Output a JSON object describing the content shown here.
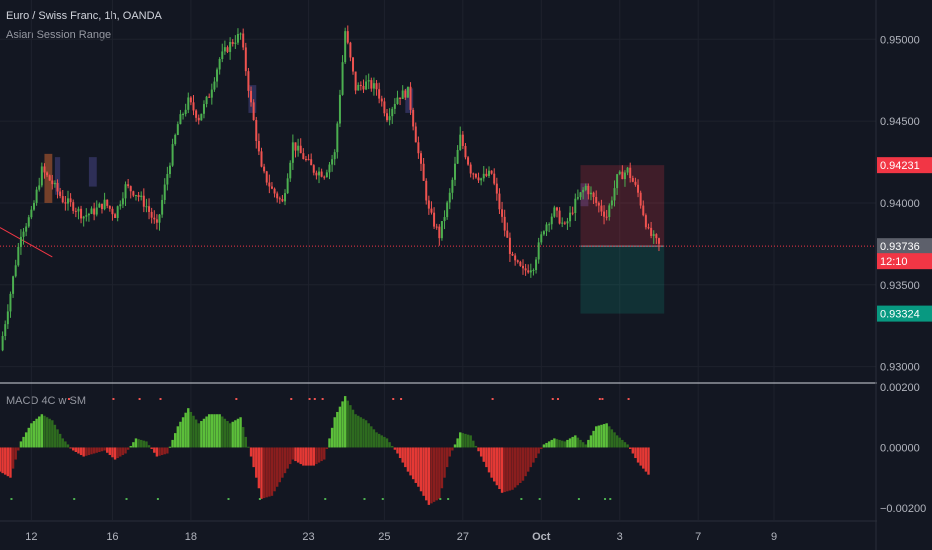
{
  "header": {
    "symbol_line": "Euro / Swiss Franc, 1h, OANDA",
    "indicator_1": "Asian Session Range",
    "indicator_2": "MACD 4C w SM"
  },
  "colors": {
    "background": "#131722",
    "grid": "#1e222d",
    "up": "#26a69a",
    "up_bright": "#4caf50",
    "down": "#ef5350",
    "session_box": "#3a3a6e",
    "session_box_orange": "#a0522d",
    "macd_up_strong": "#5cbf3a",
    "macd_up_weak": "#2e6b1f",
    "macd_down_strong": "#e53935",
    "macd_down_weak": "#8b1e1e",
    "price_label_red": "#f23645",
    "price_label_gray": "#5d606b",
    "price_label_teal": "#089981"
  },
  "chart_data": [
    {
      "type": "candlestick",
      "title": "Euro / Swiss Franc, 1h, OANDA",
      "x_tick_labels": [
        "12",
        "16",
        "18",
        "23",
        "25",
        "27",
        "Oct",
        "3",
        "7",
        "9"
      ],
      "y_tick_labels": [
        "0.95000",
        "0.94500",
        "0.94000",
        "0.93500",
        "0.93000"
      ],
      "ylim": [
        0.929,
        0.9524
      ],
      "price_path": [
        {
          "x": 0,
          "y": 0.931
        },
        {
          "x": 0.4,
          "y": 0.9345
        },
        {
          "x": 0.8,
          "y": 0.9382
        },
        {
          "x": 1.2,
          "y": 0.9393
        },
        {
          "x": 1.6,
          "y": 0.942
        },
        {
          "x": 2.0,
          "y": 0.9412
        },
        {
          "x": 2.4,
          "y": 0.9402
        },
        {
          "x": 2.8,
          "y": 0.9398
        },
        {
          "x": 3.2,
          "y": 0.9392
        },
        {
          "x": 3.6,
          "y": 0.9395
        },
        {
          "x": 4.0,
          "y": 0.94
        },
        {
          "x": 4.4,
          "y": 0.9393
        },
        {
          "x": 4.8,
          "y": 0.941
        },
        {
          "x": 5.2,
          "y": 0.9406
        },
        {
          "x": 5.6,
          "y": 0.9398
        },
        {
          "x": 6.0,
          "y": 0.9385
        },
        {
          "x": 6.4,
          "y": 0.9418
        },
        {
          "x": 6.8,
          "y": 0.9448
        },
        {
          "x": 7.2,
          "y": 0.9462
        },
        {
          "x": 7.6,
          "y": 0.9452
        },
        {
          "x": 8.0,
          "y": 0.9466
        },
        {
          "x": 8.4,
          "y": 0.9488
        },
        {
          "x": 8.8,
          "y": 0.9497
        },
        {
          "x": 9.2,
          "y": 0.9503
        },
        {
          "x": 9.6,
          "y": 0.946
        },
        {
          "x": 10.0,
          "y": 0.942
        },
        {
          "x": 10.4,
          "y": 0.9408
        },
        {
          "x": 10.8,
          "y": 0.94
        },
        {
          "x": 11.2,
          "y": 0.9436
        },
        {
          "x": 11.6,
          "y": 0.9428
        },
        {
          "x": 12.0,
          "y": 0.942
        },
        {
          "x": 12.4,
          "y": 0.9418
        },
        {
          "x": 12.8,
          "y": 0.943
        },
        {
          "x": 13.2,
          "y": 0.9505
        },
        {
          "x": 13.6,
          "y": 0.947
        },
        {
          "x": 14.0,
          "y": 0.9473
        },
        {
          "x": 14.4,
          "y": 0.947
        },
        {
          "x": 14.8,
          "y": 0.9453
        },
        {
          "x": 15.2,
          "y": 0.9465
        },
        {
          "x": 15.6,
          "y": 0.9468
        },
        {
          "x": 16.0,
          "y": 0.943
        },
        {
          "x": 16.4,
          "y": 0.9395
        },
        {
          "x": 16.8,
          "y": 0.938
        },
        {
          "x": 17.2,
          "y": 0.9405
        },
        {
          "x": 17.6,
          "y": 0.944
        },
        {
          "x": 18.0,
          "y": 0.942
        },
        {
          "x": 18.4,
          "y": 0.9415
        },
        {
          "x": 18.8,
          "y": 0.9418
        },
        {
          "x": 19.2,
          "y": 0.939
        },
        {
          "x": 19.6,
          "y": 0.9365
        },
        {
          "x": 20.0,
          "y": 0.9358
        },
        {
          "x": 20.4,
          "y": 0.9362
        },
        {
          "x": 20.8,
          "y": 0.9385
        },
        {
          "x": 21.2,
          "y": 0.9395
        },
        {
          "x": 21.6,
          "y": 0.9385
        },
        {
          "x": 22.0,
          "y": 0.94
        },
        {
          "x": 22.4,
          "y": 0.941
        },
        {
          "x": 22.8,
          "y": 0.94
        },
        {
          "x": 23.2,
          "y": 0.9392
        },
        {
          "x": 23.6,
          "y": 0.9415
        },
        {
          "x": 24.0,
          "y": 0.942
        },
        {
          "x": 24.4,
          "y": 0.9406
        },
        {
          "x": 24.8,
          "y": 0.9382
        },
        {
          "x": 25.2,
          "y": 0.9374
        }
      ],
      "session_boxes": [
        {
          "x0": 1.7,
          "x1": 2.0,
          "low": 0.94,
          "high": 0.943,
          "color": "orange"
        },
        {
          "x0": 2.1,
          "x1": 2.3,
          "low": 0.9405,
          "high": 0.9428,
          "color": "blue"
        },
        {
          "x0": 3.4,
          "x1": 3.7,
          "low": 0.941,
          "high": 0.9428,
          "color": "blue"
        },
        {
          "x0": 9.5,
          "x1": 9.8,
          "low": 0.9455,
          "high": 0.9472,
          "color": "blue"
        },
        {
          "x0": 15.5,
          "x1": 15.8,
          "low": 0.9455,
          "high": 0.947,
          "color": "blue"
        },
        {
          "x0": 22.2,
          "x1": 22.5,
          "low": 0.9398,
          "high": 0.9412,
          "color": "blue"
        }
      ],
      "trend_line": {
        "x0": 0,
        "y0": 0.9385,
        "x1": 2.0,
        "y1": 0.9367
      },
      "position": {
        "entry": 0.93736,
        "target": 0.93324,
        "stop": 0.94231,
        "x0": 22.2,
        "x1": 25.4
      },
      "price_labels": [
        {
          "text": "0.94231",
          "value": 0.94231,
          "color": "red"
        },
        {
          "text": "0.93736",
          "value": 0.93736,
          "color": "gray"
        },
        {
          "text": "12:10",
          "value": 0.93736,
          "color": "red"
        },
        {
          "text": "0.93324",
          "value": 0.93324,
          "color": "teal"
        }
      ]
    },
    {
      "type": "bar",
      "title": "MACD 4C w SM",
      "y_tick_labels": [
        "0.00200",
        "0.00000",
        "−0.00200"
      ],
      "ylim": [
        -0.0024,
        0.0021
      ],
      "histogram_envelope": [
        {
          "x": 0,
          "y": -0.0008
        },
        {
          "x": 0.4,
          "y": -0.001
        },
        {
          "x": 0.8,
          "y": 0.0002
        },
        {
          "x": 1.2,
          "y": 0.0008
        },
        {
          "x": 1.6,
          "y": 0.0011
        },
        {
          "x": 2.0,
          "y": 0.0009
        },
        {
          "x": 2.4,
          "y": 0.0003
        },
        {
          "x": 2.8,
          "y": -0.0001
        },
        {
          "x": 3.2,
          "y": -0.0003
        },
        {
          "x": 3.6,
          "y": -0.0002
        },
        {
          "x": 4.0,
          "y": -0.0001
        },
        {
          "x": 4.4,
          "y": -0.0004
        },
        {
          "x": 4.8,
          "y": -0.0002
        },
        {
          "x": 5.2,
          "y": 0.0003
        },
        {
          "x": 5.6,
          "y": 0.0002
        },
        {
          "x": 6.0,
          "y": -0.0003
        },
        {
          "x": 6.4,
          "y": -0.0002
        },
        {
          "x": 6.8,
          "y": 0.0007
        },
        {
          "x": 7.2,
          "y": 0.0013
        },
        {
          "x": 7.6,
          "y": 0.0008
        },
        {
          "x": 8.0,
          "y": 0.0011
        },
        {
          "x": 8.4,
          "y": 0.0011
        },
        {
          "x": 8.8,
          "y": 0.0008
        },
        {
          "x": 9.2,
          "y": 0.001
        },
        {
          "x": 9.6,
          "y": -0.0003
        },
        {
          "x": 10.0,
          "y": -0.0017
        },
        {
          "x": 10.4,
          "y": -0.0016
        },
        {
          "x": 10.8,
          "y": -0.001
        },
        {
          "x": 11.2,
          "y": -0.0004
        },
        {
          "x": 11.6,
          "y": -0.0006
        },
        {
          "x": 12.0,
          "y": -0.0006
        },
        {
          "x": 12.4,
          "y": -0.0004
        },
        {
          "x": 12.8,
          "y": 0.001
        },
        {
          "x": 13.2,
          "y": 0.0017
        },
        {
          "x": 13.6,
          "y": 0.0011
        },
        {
          "x": 14.0,
          "y": 0.0009
        },
        {
          "x": 14.4,
          "y": 0.0005
        },
        {
          "x": 14.8,
          "y": 0.0003
        },
        {
          "x": 15.2,
          "y": -0.0002
        },
        {
          "x": 15.6,
          "y": -0.0008
        },
        {
          "x": 16.0,
          "y": -0.0013
        },
        {
          "x": 16.4,
          "y": -0.0019
        },
        {
          "x": 16.8,
          "y": -0.0017
        },
        {
          "x": 17.2,
          "y": -0.0003
        },
        {
          "x": 17.6,
          "y": 0.0005
        },
        {
          "x": 18.0,
          "y": 0.0004
        },
        {
          "x": 18.4,
          "y": -0.0003
        },
        {
          "x": 18.8,
          "y": -0.001
        },
        {
          "x": 19.2,
          "y": -0.0015
        },
        {
          "x": 19.6,
          "y": -0.0014
        },
        {
          "x": 20.0,
          "y": -0.0011
        },
        {
          "x": 20.4,
          "y": -0.0005
        },
        {
          "x": 20.8,
          "y": 0.0001
        },
        {
          "x": 21.2,
          "y": 0.0003
        },
        {
          "x": 21.6,
          "y": 0.0002
        },
        {
          "x": 22.0,
          "y": 0.0004
        },
        {
          "x": 22.4,
          "y": 0.0001
        },
        {
          "x": 22.8,
          "y": 0.0007
        },
        {
          "x": 23.2,
          "y": 0.0008
        },
        {
          "x": 23.6,
          "y": 0.0004
        },
        {
          "x": 24.0,
          "y": 0.0001
        },
        {
          "x": 24.4,
          "y": -0.0005
        },
        {
          "x": 24.8,
          "y": -0.0009
        }
      ],
      "signal_dots_top": [
        2.6,
        4.3,
        5.3,
        6.1,
        9.0,
        11.1,
        11.8,
        12.0,
        12.3,
        15.0,
        15.3,
        18.8,
        21.1,
        21.3,
        22.9,
        23.0,
        24.0
      ],
      "signal_dots_bottom": [
        0.4,
        2.8,
        4.8,
        6.0,
        8.7,
        9.9,
        12.4,
        13.9,
        14.6,
        16.8,
        17.1,
        19.9,
        20.6,
        22.1,
        23.1,
        23.3
      ]
    }
  ]
}
